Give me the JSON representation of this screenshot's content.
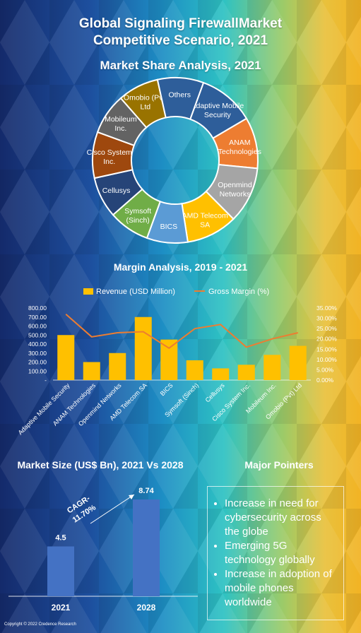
{
  "header": {
    "title_line1": "Global Signaling FirewallMarket",
    "title_line2": "Competitive Scenario, 2021"
  },
  "colors": {
    "revenue_bar": "#ffc000",
    "gross_margin_line": "#ed7d31",
    "market_size_bar": "#4472c4"
  },
  "chart_data": [
    {
      "type": "pie",
      "variant": "donut",
      "title": "Market Share Analysis, 2021",
      "slices": [
        {
          "label": "Adaptive Mobile Security",
          "value": 11,
          "color": "#2e5e9a"
        },
        {
          "label": "ANAM Technologies",
          "value": 10,
          "color": "#ed7d31"
        },
        {
          "label": "Openmind Networks",
          "value": 11,
          "color": "#a5a5a5"
        },
        {
          "label": "AMD Telecom SA",
          "value": 10,
          "color": "#ffc000"
        },
        {
          "label": "BICS",
          "value": 8,
          "color": "#5b9bd5"
        },
        {
          "label": "Symsoft (Sinch)",
          "value": 8,
          "color": "#70ad47"
        },
        {
          "label": "Cellusys",
          "value": 8,
          "color": "#264478"
        },
        {
          "label": "Cisco System Inc.",
          "value": 9,
          "color": "#9e480e"
        },
        {
          "label": "Mobileum Inc.",
          "value": 8,
          "color": "#636363"
        },
        {
          "label": "Omobio (Pvt) Ltd",
          "value": 8,
          "color": "#997300"
        },
        {
          "label": "Others",
          "value": 9,
          "color": "#2e5e9a"
        }
      ]
    },
    {
      "type": "bar",
      "title": "Margin Analysis, 2019 - 2021",
      "categories": [
        "Adaptive Mobile Security",
        "ANAM Technologies",
        "Openmind Networks",
        "AMD Telecom SA",
        "BICS",
        "Symsoft (Sinch)",
        "Cellusys",
        "Cisco System Inc.",
        "Mobileum Inc.",
        "Omobio (Pvt) Ltd"
      ],
      "series": [
        {
          "name": "Revenue (USD Million)",
          "type": "bar",
          "axis": "left",
          "values": [
            500,
            200,
            300,
            700,
            450,
            220,
            130,
            170,
            280,
            380
          ]
        },
        {
          "name": "Gross Margin (%)",
          "type": "line",
          "axis": "right",
          "values": [
            32,
            21,
            23,
            23.5,
            15.5,
            25,
            27,
            16,
            20,
            23
          ]
        }
      ],
      "ylim": [
        0,
        800
      ],
      "y2lim": [
        0,
        35
      ],
      "yticks": [
        "-",
        "100.00",
        "200.00",
        "300.00",
        "400.00",
        "500.00",
        "600.00",
        "700.00",
        "800.00"
      ],
      "y2ticks": [
        "0.00%",
        "5.00%",
        "10.00%",
        "15.00%",
        "20.00%",
        "25.00%",
        "30.00%",
        "35.00%"
      ],
      "legend": "top"
    },
    {
      "type": "bar",
      "title": "Market Size (US$ Bn), 2021 Vs 2028",
      "categories": [
        "2021",
        "2028"
      ],
      "values": [
        4.5,
        8.74
      ],
      "value_labels": [
        "4.5",
        "8.74"
      ],
      "annotation_line1": "CAGR-",
      "annotation_line2": "11.70%"
    }
  ],
  "pointers": {
    "title": "Major Pointers",
    "items": [
      "Increase in need for cybersecurity across the globe",
      "Emerging 5G technology globally",
      "Increase in adoption of mobile phones worldwide"
    ]
  },
  "footer": {
    "copyright": "Copyright © 2022 Credence Research"
  }
}
